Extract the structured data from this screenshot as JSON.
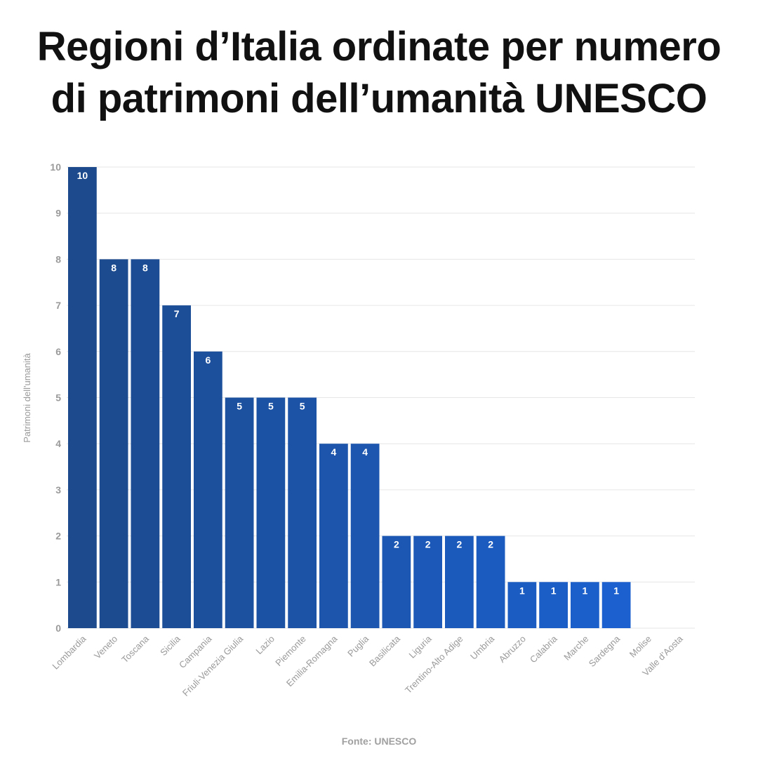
{
  "title_lines": [
    "Regioni d’Italia ordinate per numero",
    "di patrimoni dell’umanità UNESCO"
  ],
  "source": "Fonte: UNESCO",
  "colors": {
    "bar_top": "#1c4a8c",
    "bar_bottom": "#1b63d6",
    "grid": "#e6e6e6",
    "axis_text": "#9a9a9a",
    "label_text": "#ffffff"
  },
  "chart_data": {
    "type": "bar",
    "title": "Regioni d’Italia ordinate per numero di patrimoni dell’umanità UNESCO",
    "xlabel": "",
    "ylabel": "Patrimoni dell'umanità",
    "ylim": [
      0,
      10
    ],
    "yticks": [
      0,
      1,
      2,
      3,
      4,
      5,
      6,
      7,
      8,
      9,
      10
    ],
    "grid": true,
    "data_labels": true,
    "categories": [
      "Lombardia",
      "Veneto",
      "Toscana",
      "Sicilia",
      "Campania",
      "Friuli-Venezia Giulia",
      "Lazio",
      "Piemonte",
      "Emilia-Romagna",
      "Puglia",
      "Basilicata",
      "Liguria",
      "Trentino-Alto Adige",
      "Umbria",
      "Abruzzo",
      "Calabria",
      "Marche",
      "Sardegna",
      "Molise",
      "Valle d’Aosta"
    ],
    "values": [
      10,
      8,
      8,
      7,
      6,
      5,
      5,
      5,
      4,
      4,
      2,
      2,
      2,
      2,
      1,
      1,
      1,
      1,
      0,
      0
    ]
  }
}
